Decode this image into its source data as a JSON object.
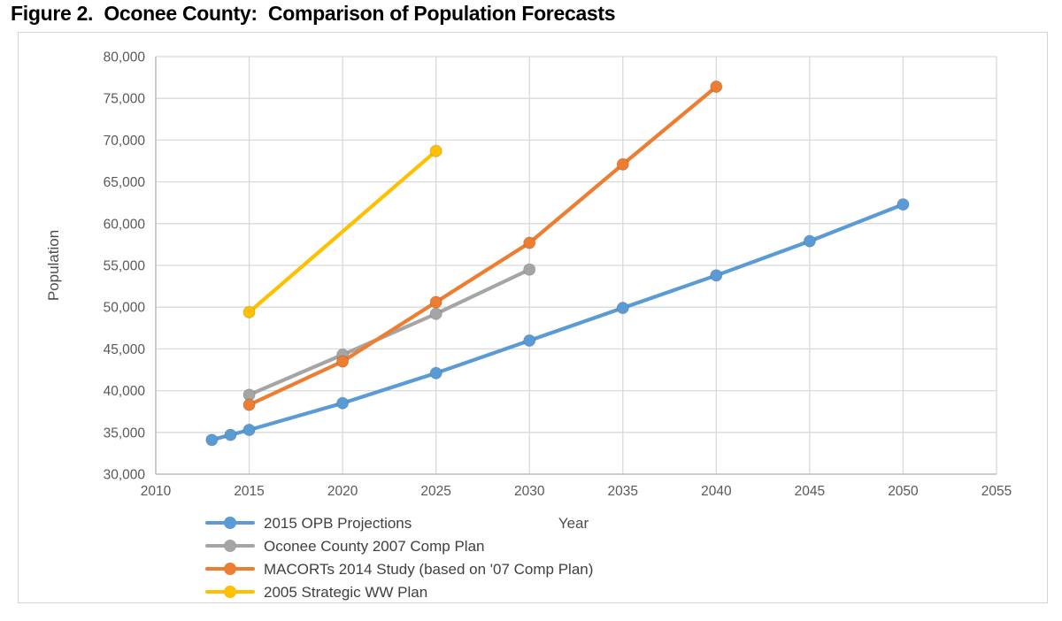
{
  "figure": {
    "title": "Figure 2.  Oconee County:  Comparison of Population Forecasts"
  },
  "chart_data": {
    "type": "line",
    "title": "Figure 2.  Oconee County:  Comparison of Population Forecasts",
    "xlabel": "Year",
    "ylabel": "Population",
    "xlim": [
      2010,
      2055
    ],
    "ylim": [
      30000,
      80000
    ],
    "x_ticks": [
      2010,
      2015,
      2020,
      2025,
      2030,
      2035,
      2040,
      2045,
      2050,
      2055
    ],
    "y_ticks": [
      30000,
      35000,
      40000,
      45000,
      50000,
      55000,
      60000,
      65000,
      70000,
      75000,
      80000
    ],
    "y_tick_labels": [
      "30,000",
      "35,000",
      "40,000",
      "45,000",
      "50,000",
      "55,000",
      "60,000",
      "65,000",
      "70,000",
      "75,000",
      "80,000"
    ],
    "grid": true,
    "legend_position": "bottom-left",
    "series": [
      {
        "name": "2015 OPB Projections",
        "slug": "2015-opb-projections",
        "color": "#5B9BD5",
        "points": [
          [
            2013,
            34100
          ],
          [
            2014,
            34700
          ],
          [
            2015,
            35300
          ],
          [
            2020,
            38500
          ],
          [
            2025,
            42100
          ],
          [
            2030,
            46000
          ],
          [
            2035,
            49900
          ],
          [
            2040,
            53800
          ],
          [
            2045,
            57900
          ],
          [
            2050,
            62300
          ]
        ]
      },
      {
        "name": "Oconee County 2007 Comp Plan",
        "slug": "oconee-county-2007-comp-plan",
        "color": "#A5A5A5",
        "points": [
          [
            2015,
            39500
          ],
          [
            2020,
            44300
          ],
          [
            2025,
            49200
          ],
          [
            2030,
            54500
          ]
        ]
      },
      {
        "name": "MACORTs 2014 Study (based on '07 Comp Plan)",
        "slug": "macorts-2014-study",
        "color": "#ED7D31",
        "points": [
          [
            2015,
            38300
          ],
          [
            2020,
            43500
          ],
          [
            2025,
            50600
          ],
          [
            2030,
            57700
          ],
          [
            2035,
            67100
          ],
          [
            2040,
            76400
          ]
        ]
      },
      {
        "name": "2005 Strategic WW Plan",
        "slug": "2005-strategic-ww-plan",
        "color": "#FFC000",
        "points": [
          [
            2015,
            49400
          ],
          [
            2025,
            68700
          ]
        ]
      }
    ],
    "colors": {
      "gridline": "#d9d9d9",
      "axis_line": "#bfbfbf",
      "axis_text": "#595959",
      "legend_text": "#404040",
      "figure_border": "#d4d4d4",
      "title_text": "#000000"
    }
  }
}
